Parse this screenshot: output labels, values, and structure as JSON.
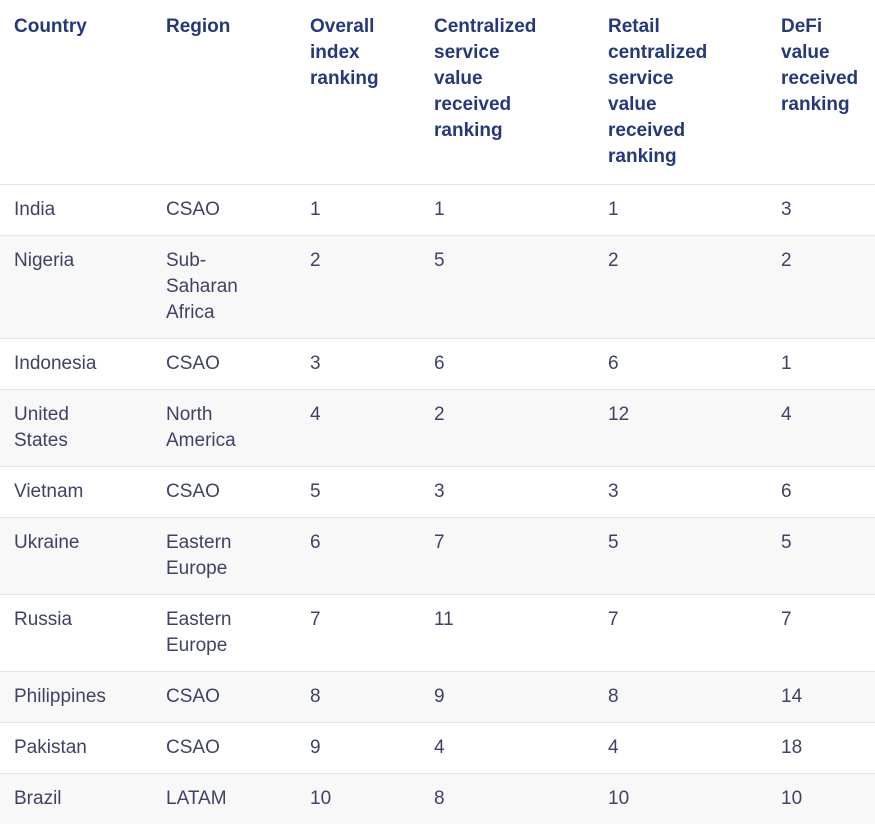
{
  "table": {
    "columns": [
      {
        "key": "country",
        "label": "Country"
      },
      {
        "key": "region",
        "label": "Region"
      },
      {
        "key": "overall",
        "label": "Overall index ranking"
      },
      {
        "key": "centralized",
        "label": "Centralized service value received ranking"
      },
      {
        "key": "retail",
        "label": "Retail centralized service value received ranking"
      },
      {
        "key": "defi",
        "label": "DeFi value received ranking"
      }
    ],
    "rows": [
      {
        "country": "India",
        "region": "CSAO",
        "overall": "1",
        "centralized": "1",
        "retail": "1",
        "defi": "3"
      },
      {
        "country": "Nigeria",
        "region": "Sub-Saharan Africa",
        "overall": "2",
        "centralized": "5",
        "retail": "2",
        "defi": "2"
      },
      {
        "country": "Indonesia",
        "region": "CSAO",
        "overall": "3",
        "centralized": "6",
        "retail": "6",
        "defi": "1"
      },
      {
        "country": "United States",
        "region": "North America",
        "overall": "4",
        "centralized": "2",
        "retail": "12",
        "defi": "4"
      },
      {
        "country": "Vietnam",
        "region": "CSAO",
        "overall": "5",
        "centralized": "3",
        "retail": "3",
        "defi": "6"
      },
      {
        "country": "Ukraine",
        "region": "Eastern Europe",
        "overall": "6",
        "centralized": "7",
        "retail": "5",
        "defi": "5"
      },
      {
        "country": "Russia",
        "region": "Eastern Europe",
        "overall": "7",
        "centralized": "11",
        "retail": "7",
        "defi": "7"
      },
      {
        "country": "Philippines",
        "region": "CSAO",
        "overall": "8",
        "centralized": "9",
        "retail": "8",
        "defi": "14"
      },
      {
        "country": "Pakistan",
        "region": "CSAO",
        "overall": "9",
        "centralized": "4",
        "retail": "4",
        "defi": "18"
      },
      {
        "country": "Brazil",
        "region": "LATAM",
        "overall": "10",
        "centralized": "8",
        "retail": "10",
        "defi": "10"
      }
    ]
  },
  "colors": {
    "header_text": "#24397b",
    "body_text": "#3e4366",
    "row_stripe": "#f8f8f9",
    "row_border": "#e4e4e7",
    "background": "#ffffff"
  }
}
